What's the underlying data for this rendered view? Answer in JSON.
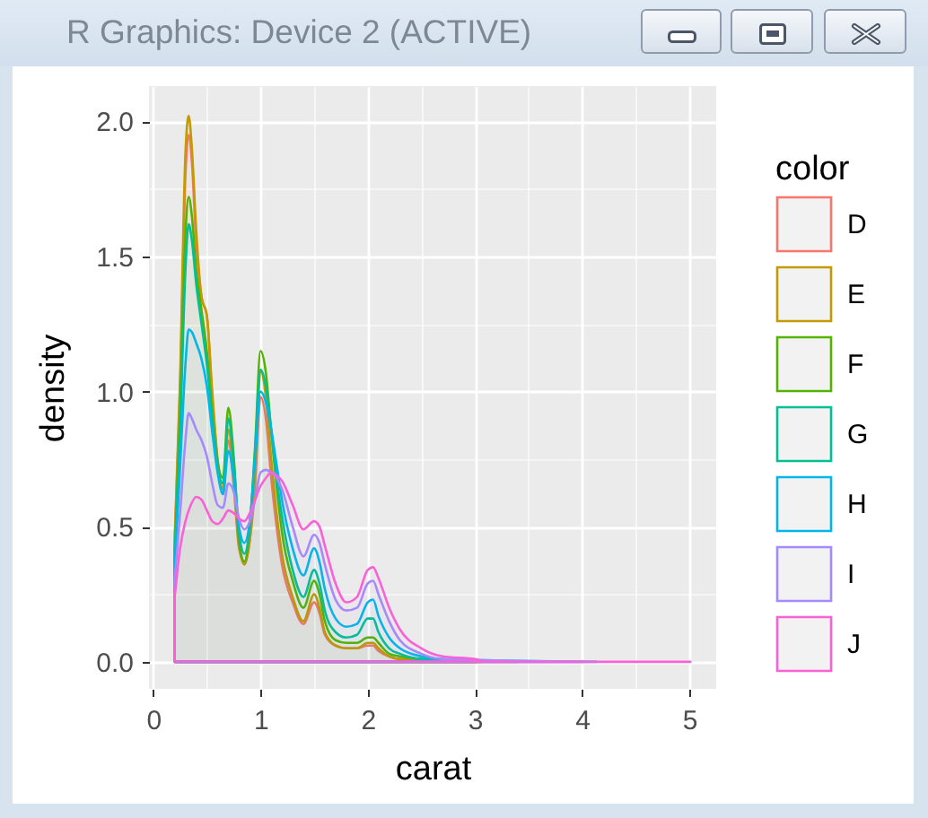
{
  "chart_data": {
    "type": "area",
    "xlabel": "carat",
    "ylabel": "density",
    "legend_title": "color",
    "legend": "right",
    "grid": true,
    "annotations": [
      "R Graphics: Device 2 (ACTIVE)"
    ],
    "xlim": [
      -0.04,
      5.25
    ],
    "ylim": [
      -0.1,
      2.13
    ],
    "xticks": [
      0,
      1,
      2,
      3,
      4,
      5
    ],
    "yticks": [
      {
        "value": 0,
        "label": "0.0"
      },
      0.5,
      {
        "value": 1,
        "label": "1.0"
      },
      1.5,
      {
        "value": 2,
        "label": "2.0"
      }
    ],
    "series": [
      {
        "name": "D",
        "color": "#f8766d",
        "x": [
          0.2,
          0.25,
          0.3,
          0.33,
          0.36,
          0.4,
          0.45,
          0.5,
          0.55,
          0.6,
          0.65,
          0.7,
          0.75,
          0.8,
          0.85,
          0.9,
          0.95,
          1.0,
          1.05,
          1.1,
          1.15,
          1.2,
          1.3,
          1.4,
          1.5,
          1.55,
          1.6,
          1.7,
          1.8,
          1.9,
          2.0,
          2.05,
          2.1,
          2.2,
          2.3,
          2.5,
          3.4
        ],
        "values": [
          0.45,
          1.0,
          1.8,
          1.95,
          1.85,
          1.55,
          1.35,
          1.28,
          0.98,
          0.74,
          0.62,
          0.82,
          0.65,
          0.42,
          0.37,
          0.45,
          0.65,
          0.98,
          0.9,
          0.68,
          0.5,
          0.36,
          0.22,
          0.14,
          0.22,
          0.18,
          0.1,
          0.06,
          0.05,
          0.05,
          0.06,
          0.06,
          0.04,
          0.02,
          0.01,
          0.01,
          0
        ]
      },
      {
        "name": "E",
        "color": "#c49a00",
        "x": [
          0.2,
          0.25,
          0.3,
          0.33,
          0.36,
          0.4,
          0.45,
          0.5,
          0.55,
          0.6,
          0.65,
          0.7,
          0.75,
          0.8,
          0.85,
          0.9,
          0.95,
          1.0,
          1.05,
          1.1,
          1.15,
          1.2,
          1.3,
          1.4,
          1.5,
          1.55,
          1.6,
          1.7,
          1.8,
          1.9,
          2.0,
          2.05,
          2.1,
          2.2,
          2.3,
          2.5,
          3.05
        ],
        "values": [
          0.45,
          1.05,
          1.88,
          2.02,
          1.9,
          1.6,
          1.35,
          1.28,
          1.0,
          0.75,
          0.64,
          0.86,
          0.7,
          0.43,
          0.36,
          0.45,
          0.7,
          1.08,
          0.98,
          0.75,
          0.55,
          0.4,
          0.24,
          0.15,
          0.25,
          0.2,
          0.11,
          0.06,
          0.05,
          0.05,
          0.07,
          0.07,
          0.05,
          0.02,
          0.01,
          0.01,
          0
        ]
      },
      {
        "name": "F",
        "color": "#53b400",
        "x": [
          0.2,
          0.25,
          0.3,
          0.33,
          0.36,
          0.4,
          0.45,
          0.5,
          0.55,
          0.6,
          0.65,
          0.7,
          0.75,
          0.8,
          0.85,
          0.9,
          0.95,
          1.0,
          1.05,
          1.1,
          1.15,
          1.2,
          1.3,
          1.4,
          1.5,
          1.55,
          1.6,
          1.7,
          1.8,
          1.9,
          2.0,
          2.05,
          2.1,
          2.2,
          2.3,
          2.5,
          3.01
        ],
        "values": [
          0.4,
          0.92,
          1.58,
          1.72,
          1.65,
          1.45,
          1.3,
          1.15,
          0.92,
          0.74,
          0.68,
          0.94,
          0.76,
          0.45,
          0.37,
          0.5,
          0.8,
          1.15,
          1.07,
          0.85,
          0.65,
          0.48,
          0.3,
          0.2,
          0.3,
          0.25,
          0.15,
          0.08,
          0.07,
          0.07,
          0.09,
          0.09,
          0.07,
          0.03,
          0.02,
          0.01,
          0
        ]
      },
      {
        "name": "G",
        "color": "#00c094",
        "x": [
          0.2,
          0.25,
          0.3,
          0.33,
          0.36,
          0.4,
          0.45,
          0.5,
          0.55,
          0.6,
          0.65,
          0.7,
          0.75,
          0.8,
          0.85,
          0.9,
          0.95,
          1.0,
          1.05,
          1.1,
          1.15,
          1.2,
          1.3,
          1.4,
          1.5,
          1.55,
          1.6,
          1.7,
          1.8,
          1.9,
          2.0,
          2.05,
          2.1,
          2.2,
          2.3,
          2.5,
          3.01
        ],
        "values": [
          0.4,
          0.85,
          1.45,
          1.62,
          1.56,
          1.4,
          1.25,
          1.1,
          0.9,
          0.72,
          0.66,
          0.9,
          0.74,
          0.48,
          0.4,
          0.5,
          0.78,
          1.08,
          1.02,
          0.86,
          0.68,
          0.54,
          0.34,
          0.24,
          0.34,
          0.29,
          0.19,
          0.11,
          0.09,
          0.1,
          0.16,
          0.16,
          0.11,
          0.05,
          0.03,
          0.01,
          0
        ]
      },
      {
        "name": "H",
        "color": "#00b6eb",
        "x": [
          0.2,
          0.25,
          0.3,
          0.33,
          0.36,
          0.4,
          0.45,
          0.5,
          0.55,
          0.6,
          0.65,
          0.7,
          0.75,
          0.8,
          0.85,
          0.9,
          0.95,
          1.0,
          1.05,
          1.1,
          1.15,
          1.2,
          1.3,
          1.4,
          1.5,
          1.55,
          1.6,
          1.7,
          1.8,
          1.9,
          2.0,
          2.05,
          2.1,
          2.2,
          2.3,
          2.5,
          2.7,
          4.13
        ],
        "values": [
          0.35,
          0.72,
          1.1,
          1.23,
          1.22,
          1.18,
          1.12,
          1.02,
          0.85,
          0.7,
          0.62,
          0.78,
          0.68,
          0.5,
          0.44,
          0.52,
          0.75,
          1.0,
          0.96,
          0.86,
          0.73,
          0.6,
          0.42,
          0.32,
          0.42,
          0.37,
          0.27,
          0.16,
          0.13,
          0.14,
          0.22,
          0.23,
          0.17,
          0.09,
          0.05,
          0.02,
          0.01,
          0
        ]
      },
      {
        "name": "I",
        "color": "#a58aff",
        "x": [
          0.2,
          0.25,
          0.3,
          0.33,
          0.36,
          0.4,
          0.45,
          0.5,
          0.55,
          0.6,
          0.65,
          0.7,
          0.75,
          0.8,
          0.85,
          0.9,
          0.95,
          1.0,
          1.05,
          1.1,
          1.15,
          1.2,
          1.3,
          1.4,
          1.5,
          1.55,
          1.6,
          1.7,
          1.8,
          1.9,
          2.0,
          2.05,
          2.1,
          2.2,
          2.3,
          2.5,
          2.7,
          4.01
        ],
        "values": [
          0.3,
          0.55,
          0.82,
          0.92,
          0.9,
          0.86,
          0.82,
          0.76,
          0.66,
          0.58,
          0.57,
          0.66,
          0.63,
          0.53,
          0.49,
          0.52,
          0.6,
          0.7,
          0.71,
          0.7,
          0.68,
          0.64,
          0.5,
          0.39,
          0.47,
          0.44,
          0.36,
          0.23,
          0.19,
          0.2,
          0.29,
          0.3,
          0.25,
          0.15,
          0.08,
          0.03,
          0.01,
          0
        ]
      },
      {
        "name": "J",
        "color": "#fb61d7",
        "x": [
          0.2,
          0.25,
          0.3,
          0.35,
          0.4,
          0.45,
          0.5,
          0.55,
          0.6,
          0.65,
          0.7,
          0.75,
          0.8,
          0.85,
          0.9,
          0.95,
          1.0,
          1.05,
          1.1,
          1.15,
          1.2,
          1.3,
          1.4,
          1.5,
          1.55,
          1.6,
          1.7,
          1.8,
          1.9,
          2.0,
          2.05,
          2.1,
          2.2,
          2.3,
          2.5,
          2.7,
          3.0,
          3.1,
          5.01
        ],
        "values": [
          0.24,
          0.42,
          0.52,
          0.58,
          0.61,
          0.6,
          0.56,
          0.52,
          0.51,
          0.53,
          0.56,
          0.55,
          0.53,
          0.52,
          0.55,
          0.6,
          0.65,
          0.68,
          0.7,
          0.69,
          0.67,
          0.58,
          0.49,
          0.52,
          0.5,
          0.43,
          0.29,
          0.22,
          0.24,
          0.34,
          0.35,
          0.31,
          0.2,
          0.12,
          0.05,
          0.02,
          0.01,
          0,
          0
        ]
      }
    ]
  }
}
